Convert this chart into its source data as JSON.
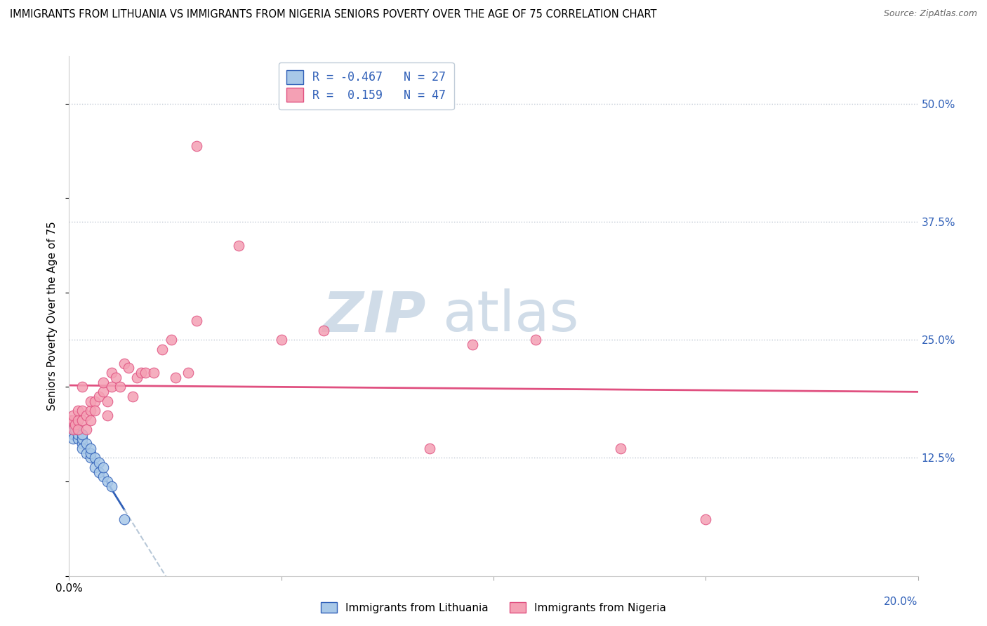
{
  "title": "IMMIGRANTS FROM LITHUANIA VS IMMIGRANTS FROM NIGERIA SENIORS POVERTY OVER THE AGE OF 75 CORRELATION CHART",
  "source": "Source: ZipAtlas.com",
  "ylabel": "Seniors Poverty Over the Age of 75",
  "ytick_values": [
    0.0,
    0.125,
    0.25,
    0.375,
    0.5
  ],
  "xlim": [
    0.0,
    0.2
  ],
  "ylim": [
    0.0,
    0.55
  ],
  "R_lithuania": -0.467,
  "N_lithuania": 27,
  "R_nigeria": 0.159,
  "N_nigeria": 47,
  "color_lithuania": "#a8c8e8",
  "color_nigeria": "#f4a0b4",
  "color_line_lithuania": "#3060b8",
  "color_line_nigeria": "#e05080",
  "color_trendline_dashed": "#b8c8d8",
  "background_color": "#ffffff",
  "watermark_color": "#d0dce8",
  "lithuania_x": [
    0.0005,
    0.001,
    0.001,
    0.001,
    0.001,
    0.0015,
    0.002,
    0.002,
    0.002,
    0.003,
    0.003,
    0.003,
    0.003,
    0.004,
    0.004,
    0.005,
    0.005,
    0.005,
    0.006,
    0.006,
    0.007,
    0.007,
    0.008,
    0.008,
    0.009,
    0.01,
    0.013
  ],
  "lithuania_y": [
    0.165,
    0.155,
    0.16,
    0.15,
    0.145,
    0.155,
    0.145,
    0.15,
    0.155,
    0.14,
    0.135,
    0.145,
    0.15,
    0.13,
    0.14,
    0.125,
    0.13,
    0.135,
    0.115,
    0.125,
    0.11,
    0.12,
    0.105,
    0.115,
    0.1,
    0.095,
    0.06
  ],
  "nigeria_x": [
    0.0005,
    0.001,
    0.001,
    0.001,
    0.0015,
    0.002,
    0.002,
    0.002,
    0.003,
    0.003,
    0.003,
    0.004,
    0.004,
    0.005,
    0.005,
    0.005,
    0.006,
    0.006,
    0.007,
    0.008,
    0.008,
    0.009,
    0.009,
    0.01,
    0.01,
    0.011,
    0.012,
    0.013,
    0.014,
    0.015,
    0.016,
    0.017,
    0.018,
    0.02,
    0.022,
    0.024,
    0.025,
    0.028,
    0.03,
    0.04,
    0.05,
    0.06,
    0.085,
    0.095,
    0.11,
    0.13,
    0.15
  ],
  "nigeria_y": [
    0.165,
    0.165,
    0.155,
    0.17,
    0.16,
    0.165,
    0.175,
    0.155,
    0.175,
    0.165,
    0.2,
    0.17,
    0.155,
    0.175,
    0.185,
    0.165,
    0.185,
    0.175,
    0.19,
    0.195,
    0.205,
    0.17,
    0.185,
    0.2,
    0.215,
    0.21,
    0.2,
    0.225,
    0.22,
    0.19,
    0.21,
    0.215,
    0.215,
    0.215,
    0.24,
    0.25,
    0.21,
    0.215,
    0.27,
    0.35,
    0.25,
    0.26,
    0.135,
    0.245,
    0.25,
    0.135,
    0.06
  ],
  "nigeria_outlier_x": [
    0.03
  ],
  "nigeria_outlier_y": [
    0.455
  ]
}
